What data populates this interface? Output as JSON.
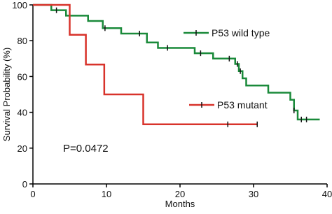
{
  "chart_data": {
    "type": "step",
    "xlabel": "Months",
    "ylabel": "Survival Probability (%)",
    "annotation": "P=0.0472",
    "xlim": [
      0,
      40
    ],
    "xticks": [
      0,
      10,
      20,
      30,
      40
    ],
    "ylim": [
      0,
      100
    ],
    "yticks": [
      0,
      20,
      40,
      60,
      80,
      100
    ],
    "series": [
      {
        "name": "P53 wild type",
        "color": "#1a8a3a",
        "x": [
          0,
          2.5,
          4.5,
          7.5,
          9.5,
          12,
          15.5,
          17,
          22,
          24.5,
          27.5,
          28,
          28.5,
          29,
          32,
          35,
          35.5,
          36,
          39
        ],
        "values": [
          100,
          97,
          94,
          91,
          87,
          84,
          79,
          76,
          73,
          70,
          67,
          63,
          59,
          55,
          51,
          47,
          41,
          36,
          36
        ],
        "censored_x": [
          3.2,
          9.8,
          14.5,
          18.3,
          22.8,
          26.7,
          27.8,
          28.2,
          35.5,
          36.5,
          37.2
        ]
      },
      {
        "name": "P53 mutant",
        "color": "#d8332b",
        "x": [
          0,
          5,
          7.2,
          9.7,
          15,
          30.5
        ],
        "values": [
          100,
          83.3,
          66.7,
          50,
          33.3,
          33.3
        ],
        "censored_x": [
          26.5,
          30.5
        ]
      }
    ]
  }
}
